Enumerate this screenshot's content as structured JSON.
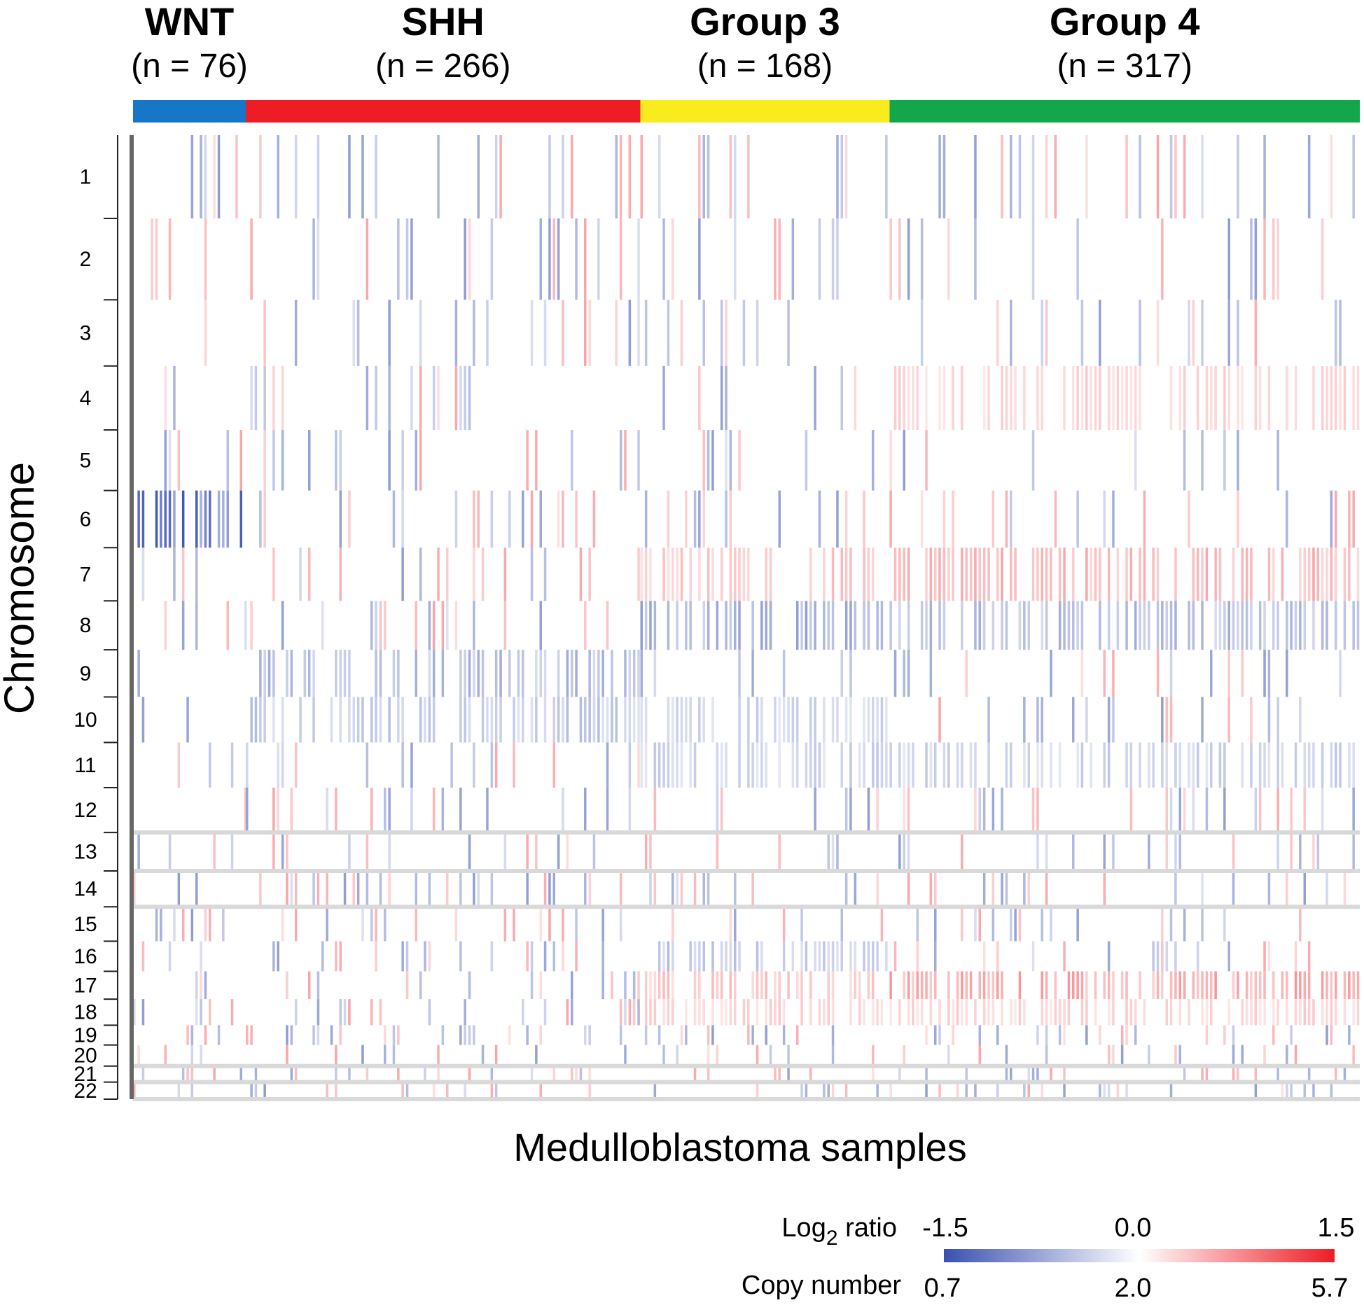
{
  "chart_data": {
    "type": "heatmap",
    "xlabel": "Medulloblastoma samples",
    "ylabel": "Chromosome",
    "groups": [
      {
        "name": "WNT",
        "n_label": "(n = 76)",
        "count": 76,
        "color": "#1577c5"
      },
      {
        "name": "SHH",
        "n_label": "(n = 266)",
        "count": 266,
        "color": "#ee1c24"
      },
      {
        "name": "Group 3",
        "n_label": "(n = 168)",
        "count": 168,
        "color": "#f8ec1e"
      },
      {
        "name": "Group 4",
        "n_label": "(n = 317)",
        "count": 317,
        "color": "#13a64a"
      }
    ],
    "chromosomes": [
      "1",
      "2",
      "3",
      "4",
      "5",
      "6",
      "7",
      "8",
      "9",
      "10",
      "11",
      "12",
      "13",
      "14",
      "15",
      "16",
      "17",
      "18",
      "19",
      "20",
      "21",
      "22"
    ],
    "chromosome_relative_size": [
      249,
      243,
      198,
      191,
      181,
      171,
      159,
      146,
      141,
      136,
      135,
      134,
      115,
      107,
      103,
      90,
      83,
      78,
      59,
      63,
      48,
      51
    ],
    "dominant_pattern_log2": {
      "WNT": {
        "6": -1.2
      },
      "SHH": {
        "9": -0.6,
        "10": -0.5
      },
      "Group 3": {
        "7": 0.4,
        "8": -0.7,
        "16": -0.5,
        "17": 0.4,
        "18": 0.3,
        "10": -0.4,
        "11": -0.4
      },
      "Group 4": {
        "7": 0.5,
        "8": -0.6,
        "4": 0.3,
        "17": 0.6,
        "18": 0.3,
        "11": -0.4
      }
    },
    "colorscale": {
      "low_color": "#3a50b0",
      "mid_color": "#ffffff",
      "high_color": "#ee1c24",
      "log2_title": "Log",
      "log2_title_sub": "2",
      "log2_title_suffix": " ratio",
      "log2_ticks": [
        "-1.5",
        "0.0",
        "1.5"
      ],
      "copy_title": "Copy number",
      "copy_ticks": [
        "0.7",
        "2.0",
        "5.7"
      ]
    }
  }
}
